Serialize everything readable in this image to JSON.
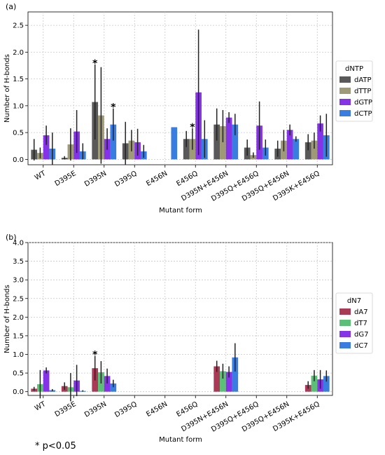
{
  "chart_data": [
    {
      "type": "bar",
      "panel_label": "(a)",
      "xlabel": "Mutant form",
      "ylabel": "Number of H-bonds",
      "ylim": [
        -0.1,
        2.75
      ],
      "yticks": [
        "0.0",
        "0.5",
        "1.0",
        "1.5",
        "2.0",
        "2.5"
      ],
      "grid": true,
      "legend_title": "dNTP",
      "legend_position": "right",
      "categories": [
        "WT",
        "D395E",
        "D395N",
        "D395Q",
        "E456N",
        "E456Q",
        "D395N+E456N",
        "D395Q+E456Q",
        "D395Q+E456N",
        "D395K+E456Q"
      ],
      "series": [
        {
          "name": "dATP",
          "color": "#595959",
          "values": [
            0.18,
            0.03,
            1.07,
            0.3,
            0,
            0.38,
            0.65,
            0.22,
            0.2,
            0.32
          ],
          "errors": [
            0.2,
            0.03,
            0.7,
            0.4,
            0,
            0.15,
            0.3,
            0.15,
            0.15,
            0.15
          ]
        },
        {
          "name": "dTTP",
          "color": "#9e9a78",
          "values": [
            0.12,
            0.28,
            0.82,
            0.35,
            0,
            0.38,
            0.62,
            0.08,
            0.35,
            0.35
          ],
          "errors": [
            0.1,
            0.3,
            0.9,
            0.2,
            0,
            0.2,
            0.3,
            0.05,
            0.2,
            0.15
          ]
        },
        {
          "name": "dGTP",
          "color": "#8533e6",
          "values": [
            0.45,
            0.52,
            0.38,
            0.32,
            0,
            1.25,
            0.78,
            0.63,
            0.55,
            0.67
          ],
          "errors": [
            0.18,
            0.4,
            0.2,
            0.25,
            0,
            1.17,
            0.1,
            0.45,
            0.1,
            0.15
          ]
        },
        {
          "name": "dCTP",
          "color": "#3a7de0",
          "values": [
            0.2,
            0.15,
            0.65,
            0.15,
            0.6,
            0.38,
            0.65,
            0.22,
            0.38,
            0.45
          ],
          "errors": [
            0.3,
            0.15,
            0.3,
            0.12,
            0,
            0.35,
            0.2,
            0.15,
            0.05,
            0.4
          ]
        }
      ],
      "significance_markers": [
        {
          "category": "D395N",
          "series": "dATP",
          "text": "*"
        },
        {
          "category": "D395N",
          "series": "dCTP",
          "text": "*"
        },
        {
          "category": "E456Q",
          "series": "dTTP",
          "text": "*"
        }
      ]
    },
    {
      "type": "bar",
      "panel_label": "(b)",
      "xlabel": "Mutant form",
      "ylabel": "Number of H-bonds",
      "ylim": [
        -0.1,
        4.0
      ],
      "yticks": [
        "0.0",
        "0.5",
        "1.0",
        "1.5",
        "2.0",
        "2.5",
        "3.0",
        "3.5",
        "4.0"
      ],
      "grid": true,
      "legend_title": "dN7",
      "legend_position": "right",
      "categories": [
        "WT",
        "D395E",
        "D395N",
        "D395Q",
        "E456N",
        "E456Q",
        "D395N+E456N",
        "D395Q+E456Q",
        "D395Q+E456N",
        "D395K+E456Q"
      ],
      "series": [
        {
          "name": "dA7",
          "color": "#a83a55",
          "values": [
            0.08,
            0.15,
            0.63,
            0,
            0,
            0,
            0.68,
            0,
            0,
            0.18
          ],
          "errors": [
            0.05,
            0.1,
            0.33,
            0,
            0,
            0,
            0.15,
            0,
            0,
            0.1
          ]
        },
        {
          "name": "dT7",
          "color": "#5cbf77",
          "values": [
            0.2,
            0.12,
            0.52,
            0,
            0,
            0,
            0.55,
            0,
            0,
            0.43
          ],
          "errors": [
            0.38,
            0.38,
            0.3,
            0,
            0,
            0,
            0.2,
            0,
            0,
            0.15
          ]
        },
        {
          "name": "dG7",
          "color": "#8533e6",
          "values": [
            0.57,
            0.3,
            0.42,
            0,
            0,
            0,
            0.53,
            0,
            0,
            0.33
          ],
          "errors": [
            0.08,
            0.42,
            0.2,
            0,
            0,
            0,
            0.15,
            0,
            0,
            0.25
          ]
        },
        {
          "name": "dC7",
          "color": "#3a7de0",
          "values": [
            0.04,
            0.02,
            0.22,
            0,
            0,
            0,
            0.92,
            0,
            0,
            0.42
          ],
          "errors": [
            0.03,
            0.02,
            0.1,
            0,
            0,
            0,
            0.38,
            0,
            0,
            0.15
          ]
        }
      ],
      "significance_markers": [
        {
          "category": "D395N",
          "series": "dA7",
          "text": "*"
        }
      ]
    }
  ],
  "footnote": "* p<0.05"
}
